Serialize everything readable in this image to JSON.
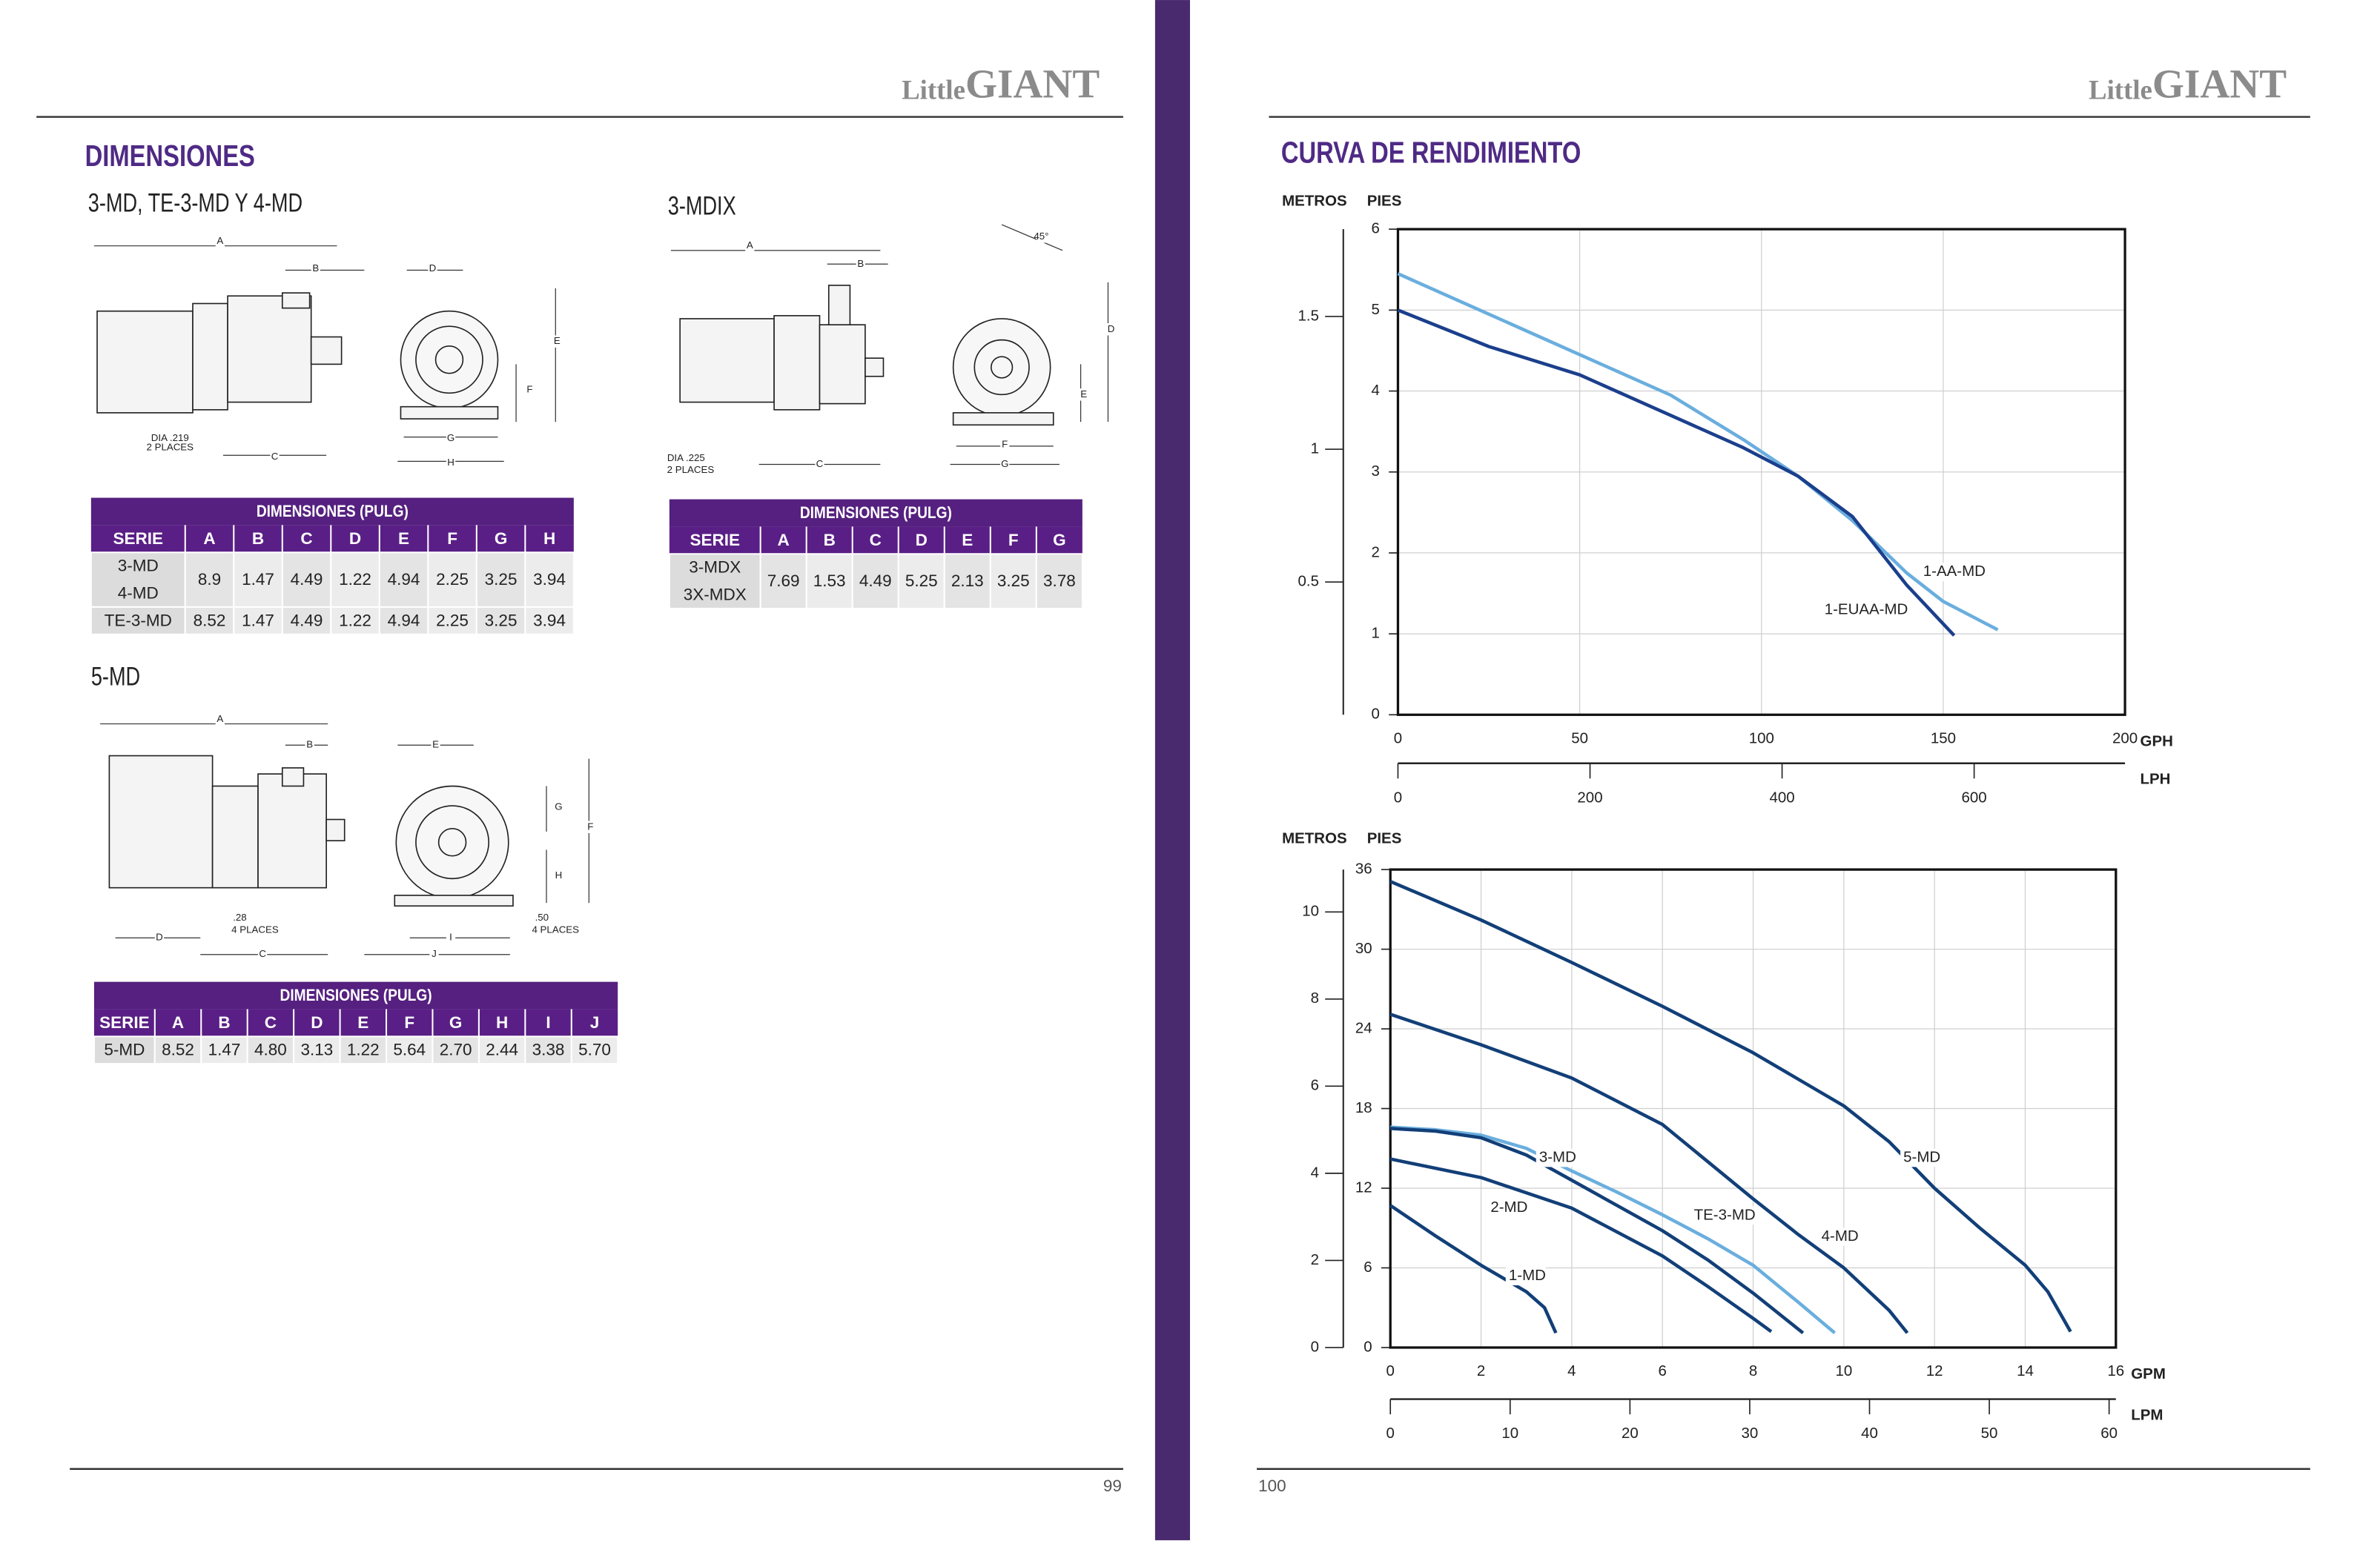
{
  "left_page": {
    "brand": {
      "small": "Little",
      "big": "GIANT"
    },
    "heading": "DIMENSIONES",
    "models": [
      {
        "title": "3-MD, TE-3-MD Y 4-MD",
        "drawing_labels": [
          "A",
          "B",
          "C",
          "D",
          "E",
          "F",
          "G",
          "H",
          "DIA .219",
          "2 PLACES"
        ],
        "table": {
          "caption": "DIMENSIONES (PULG)",
          "header": [
            "SERIE",
            "A",
            "B",
            "C",
            "D",
            "E",
            "F",
            "G",
            "H"
          ],
          "rows": [
            {
              "serie": [
                "3-MD",
                "4-MD"
              ],
              "cells": [
                "8.9",
                "1.47",
                "4.49",
                "1.22",
                "4.94",
                "2.25",
                "3.25",
                "3.94"
              ]
            },
            {
              "serie": [
                "TE-3-MD"
              ],
              "cells": [
                "8.52",
                "1.47",
                "4.49",
                "1.22",
                "4.94",
                "2.25",
                "3.25",
                "3.94"
              ]
            }
          ]
        }
      },
      {
        "title": "3-MDIX",
        "drawing_labels": [
          "A",
          "B",
          "C",
          "D",
          "E",
          "F",
          "G",
          "45°",
          "DIA .225",
          "2 PLACES"
        ],
        "table": {
          "caption": "DIMENSIONES (PULG)",
          "header": [
            "SERIE",
            "A",
            "B",
            "C",
            "D",
            "E",
            "F",
            "G"
          ],
          "rows": [
            {
              "serie": [
                "3-MDX",
                "3X-MDX"
              ],
              "cells": [
                "7.69",
                "1.53",
                "4.49",
                "5.25",
                "2.13",
                "3.25",
                "3.78"
              ]
            }
          ]
        }
      },
      {
        "title": "5-MD",
        "drawing_labels": [
          "A",
          "B",
          "C",
          "D",
          "E",
          "F",
          "G",
          "H",
          "I",
          "J",
          ".28",
          "4 PLACES",
          ".50",
          "4 PLACES"
        ],
        "table": {
          "caption": "DIMENSIONES (PULG)",
          "header": [
            "SERIE",
            "A",
            "B",
            "C",
            "D",
            "E",
            "F",
            "G",
            "H",
            "I",
            "J"
          ],
          "rows": [
            {
              "serie": [
                "5-MD"
              ],
              "cells": [
                "8.52",
                "1.47",
                "4.80",
                "3.13",
                "1.22",
                "5.64",
                "2.70",
                "2.44",
                "3.38",
                "5.70"
              ]
            }
          ]
        }
      }
    ],
    "page_number": "99"
  },
  "right_page": {
    "brand": {
      "small": "Little",
      "big": "GIANT"
    },
    "heading": "CURVA DE RENDIMIENTO",
    "page_number": "100"
  },
  "chart_data": [
    {
      "type": "line",
      "y2_label": "METROS",
      "y_label": "PIES",
      "x_label": "GPH",
      "x2_label": "LPH",
      "xlim": [
        0,
        200
      ],
      "xticks": [
        0,
        50,
        100,
        150,
        200
      ],
      "ylim": [
        0,
        6
      ],
      "yticks": [
        0,
        1,
        2,
        3,
        4,
        5,
        6
      ],
      "y2lim": [
        0,
        1.8288
      ],
      "y2ticks": [
        0.5,
        1,
        1.5
      ],
      "x2lim": [
        0,
        757.08
      ],
      "x2ticks": [
        0,
        200,
        400,
        600
      ],
      "grid": true,
      "series": [
        {
          "name": "1-AA-MD",
          "color": "#6aaede",
          "x": [
            0,
            25,
            50,
            75,
            95,
            110,
            125,
            140,
            150,
            165
          ],
          "values": [
            5.45,
            4.95,
            4.45,
            3.95,
            3.4,
            2.95,
            2.4,
            1.75,
            1.4,
            1.05
          ]
        },
        {
          "name": "1-EUAA-MD",
          "color": "#1b3f8c",
          "x": [
            0,
            25,
            50,
            75,
            95,
            110,
            125,
            140,
            153
          ],
          "values": [
            5.0,
            4.55,
            4.2,
            3.7,
            3.3,
            2.95,
            2.45,
            1.6,
            0.98
          ]
        }
      ]
    },
    {
      "type": "line",
      "y2_label": "METROS",
      "y_label": "PIES",
      "x_label": "GPM",
      "x2_label": "LPM",
      "xlim": [
        0,
        16
      ],
      "xticks": [
        0,
        2,
        4,
        6,
        8,
        10,
        12,
        14,
        16
      ],
      "ylim": [
        0,
        36
      ],
      "yticks": [
        0,
        6,
        12,
        18,
        24,
        30,
        36
      ],
      "y2lim": [
        0,
        10.9728
      ],
      "y2ticks": [
        0,
        2,
        4,
        6,
        8,
        10
      ],
      "x2lim": [
        0,
        60.567
      ],
      "x2ticks": [
        0,
        10,
        20,
        30,
        40,
        50,
        60
      ],
      "grid": true,
      "series": [
        {
          "name": "5-MD",
          "color": "#123f78",
          "x": [
            0,
            2,
            4,
            6,
            8,
            10,
            11,
            12,
            13,
            14,
            14.5,
            15
          ],
          "values": [
            35.1,
            32.2,
            29,
            25.7,
            22.2,
            18.2,
            15.5,
            12,
            9,
            6.2,
            4.2,
            1.2
          ]
        },
        {
          "name": "4-MD",
          "color": "#123f78",
          "x": [
            0,
            2,
            4,
            6,
            8,
            9,
            10,
            11,
            11.4
          ],
          "values": [
            25.1,
            22.8,
            20.3,
            16.8,
            11.2,
            8.5,
            6,
            2.8,
            1.1
          ]
        },
        {
          "name": "TE-3-MD",
          "color": "#6aaede",
          "x": [
            0,
            1,
            2,
            3,
            4,
            5,
            6,
            7,
            8,
            9,
            9.8
          ],
          "values": [
            16.6,
            16.4,
            16,
            15,
            13.3,
            11.7,
            10,
            8.2,
            6.2,
            3.4,
            1.1
          ]
        },
        {
          "name": "3-MD",
          "color": "#123f78",
          "x": [
            0,
            1,
            2,
            3,
            4,
            5,
            6,
            7,
            8,
            9.1
          ],
          "values": [
            16.5,
            16.3,
            15.8,
            14.5,
            12.6,
            10.7,
            8.8,
            6.6,
            4.1,
            1.1
          ]
        },
        {
          "name": "2-MD",
          "color": "#123f78",
          "x": [
            0,
            2,
            4,
            6,
            7,
            8,
            8.4
          ],
          "values": [
            14.2,
            12.8,
            10.5,
            6.9,
            4.6,
            2.2,
            1.2
          ]
        },
        {
          "name": "1-MD",
          "color": "#123f78",
          "x": [
            0,
            1,
            2,
            3,
            3.4,
            3.65
          ],
          "values": [
            10.7,
            8.4,
            6.2,
            4.2,
            3,
            1.1
          ]
        }
      ]
    }
  ]
}
